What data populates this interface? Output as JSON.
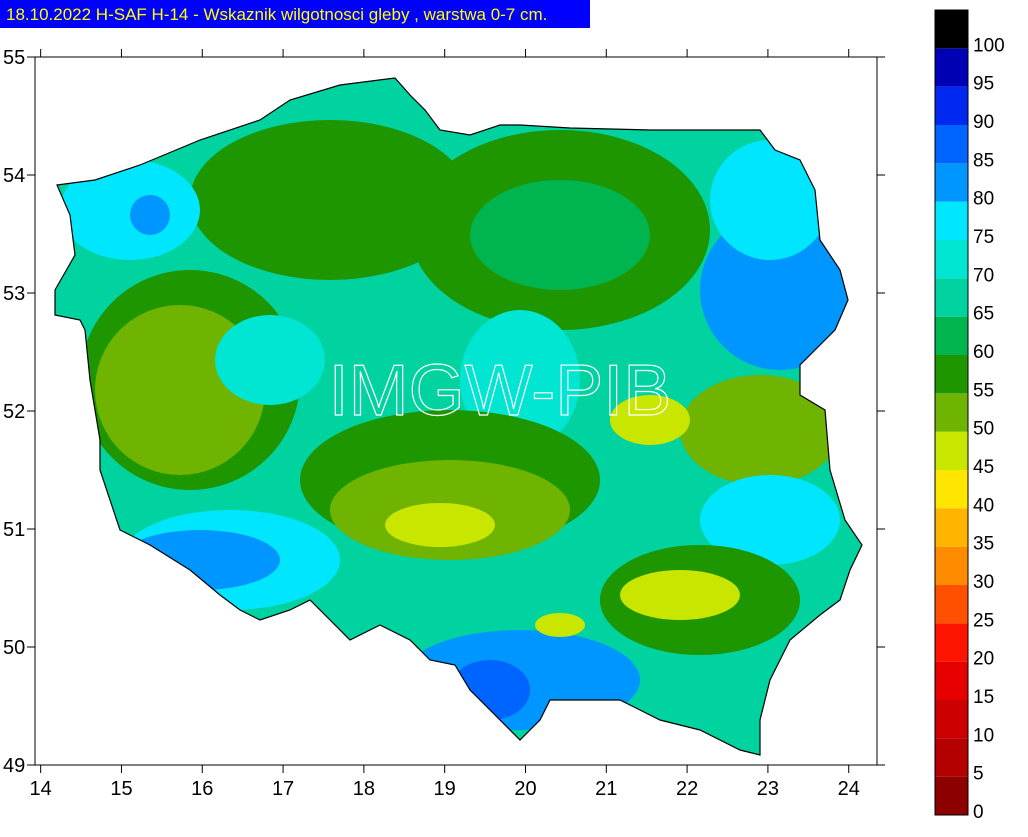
{
  "title": "18.10.2022 H-SAF H-14 - Wskaznik wilgotnosci gleby , warstwa 0-7 cm.",
  "watermark": "IMGW-PIB",
  "map": {
    "lon_range": [
      13.93,
      24.35
    ],
    "lat_range": [
      49,
      55
    ],
    "lon_ticks": [
      14,
      15,
      16,
      17,
      18,
      19,
      20,
      21,
      22,
      23,
      24
    ],
    "lat_ticks": [
      49,
      50,
      51,
      52,
      53,
      54,
      55
    ]
  },
  "legend": {
    "levels": [
      0,
      5,
      10,
      15,
      20,
      25,
      30,
      35,
      40,
      45,
      50,
      55,
      60,
      65,
      70,
      75,
      80,
      85,
      90,
      95,
      100
    ],
    "colors": [
      "#8c0000",
      "#b40000",
      "#cc0000",
      "#e60000",
      "#ff1400",
      "#ff5000",
      "#ff8c00",
      "#ffb400",
      "#ffe600",
      "#c8e600",
      "#6eb400",
      "#1e9600",
      "#00b450",
      "#00d2a0",
      "#00e6d2",
      "#00e6ff",
      "#0096ff",
      "#0064ff",
      "#0028f0",
      "#0000b4",
      "#000000"
    ]
  }
}
